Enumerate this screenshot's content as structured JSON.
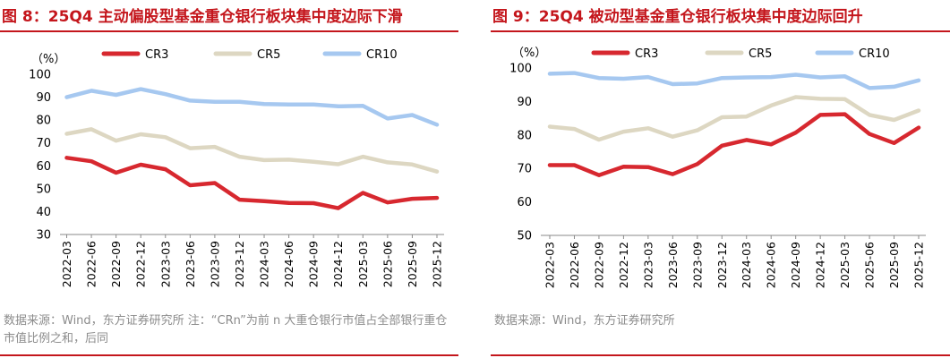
{
  "charts": [
    {
      "title": "图 8：25Q4 主动偏股型基金重仓银行板块集中度边际下滑",
      "note": "数据来源：Wind，东方证券研究所 注：“CRn”为前 n 大重仓银行市值占全部银行重仓市值比例之和，后同",
      "chart_data": {
        "type": "line",
        "ylabel": "（%）",
        "ylim": [
          30,
          100
        ],
        "yticks": [
          "30",
          "40",
          "50",
          "60",
          "70",
          "80",
          "90",
          "100"
        ],
        "categories": [
          "2022-03",
          "2022-06",
          "2022-09",
          "2022-12",
          "2023-03",
          "2023-06",
          "2023-09",
          "2023-12",
          "2024-03",
          "2024-06",
          "2024-09",
          "2024-12",
          "2025-03",
          "2025-06",
          "2025-09",
          "2025-12"
        ],
        "legend_position": "top",
        "grid": false,
        "series": [
          {
            "name": "CR3",
            "color": "#d7282f",
            "values": [
              63.5,
              62,
              57,
              60.5,
              58.5,
              51.5,
              52.5,
              45.2,
              44.6,
              43.8,
              43.7,
              41.5,
              48.2,
              44,
              45.6,
              46
            ]
          },
          {
            "name": "CR5",
            "color": "#ddd7c2",
            "values": [
              74,
              76,
              71,
              73.8,
              72.5,
              67.7,
              68.3,
              64,
              62.5,
              62.7,
              61.8,
              60.7,
              64,
              61.5,
              60.6,
              57.5
            ]
          },
          {
            "name": "CR10",
            "color": "#a6c8f0",
            "values": [
              90,
              92.8,
              91,
              93.5,
              91.3,
              88.5,
              88,
              88,
              87,
              86.8,
              86.8,
              86,
              86.2,
              80.7,
              82.2,
              78
            ]
          }
        ]
      }
    },
    {
      "title": "图 9：25Q4 被动型基金重仓银行板块集中度边际回升",
      "note": "数据来源：Wind，东方证券研究所",
      "chart_data": {
        "type": "line",
        "ylabel": "（%）",
        "ylim": [
          50,
          100
        ],
        "yticks": [
          "50",
          "60",
          "70",
          "80",
          "90",
          "100"
        ],
        "categories": [
          "2022-03",
          "2022-06",
          "2022-09",
          "2022-12",
          "2023-03",
          "2023-06",
          "2023-09",
          "2023-12",
          "2024-03",
          "2024-06",
          "2024-09",
          "2024-12",
          "2025-03",
          "2025-06",
          "2025-09",
          "2025-12"
        ],
        "legend_position": "top",
        "grid": false,
        "series": [
          {
            "name": "CR3",
            "color": "#d7282f",
            "values": [
              71,
              71,
              68,
              70.5,
              70.4,
              68.3,
              71.3,
              76.8,
              78.5,
              77.2,
              80.7,
              86,
              86.2,
              80.3,
              77.6,
              82.2
            ]
          },
          {
            "name": "CR5",
            "color": "#ddd7c2",
            "values": [
              82.5,
              81.8,
              78.6,
              81,
              82,
              79.5,
              81.4,
              85.3,
              85.5,
              88.8,
              91.3,
              90.8,
              90.7,
              86,
              84.5,
              87.3
            ]
          },
          {
            "name": "CR10",
            "color": "#a6c8f0",
            "values": [
              98.3,
              98.5,
              97,
              96.8,
              97.3,
              95.2,
              95.4,
              97,
              97.2,
              97.3,
              98,
              97.2,
              97.5,
              94,
              94.4,
              96.3
            ]
          }
        ]
      }
    }
  ]
}
